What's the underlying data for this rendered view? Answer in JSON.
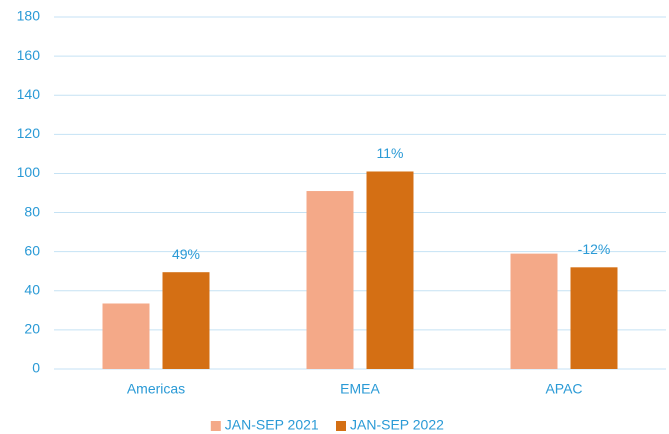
{
  "chart_data": {
    "type": "bar",
    "categories": [
      "Americas",
      "EMEA",
      "APAC"
    ],
    "series": [
      {
        "name": "JAN-SEP 2021",
        "color": "#f4a988",
        "values": [
          33.5,
          91,
          59
        ]
      },
      {
        "name": "JAN-SEP 2022",
        "color": "#d46f14",
        "values": [
          49.5,
          101,
          52
        ]
      }
    ],
    "annotations": [
      "49%",
      "11%",
      "-12%"
    ],
    "ylim": [
      0,
      180
    ],
    "yticks": [
      0,
      20,
      40,
      60,
      80,
      100,
      120,
      140,
      160,
      180
    ],
    "grid": true,
    "legend": "bottom"
  }
}
